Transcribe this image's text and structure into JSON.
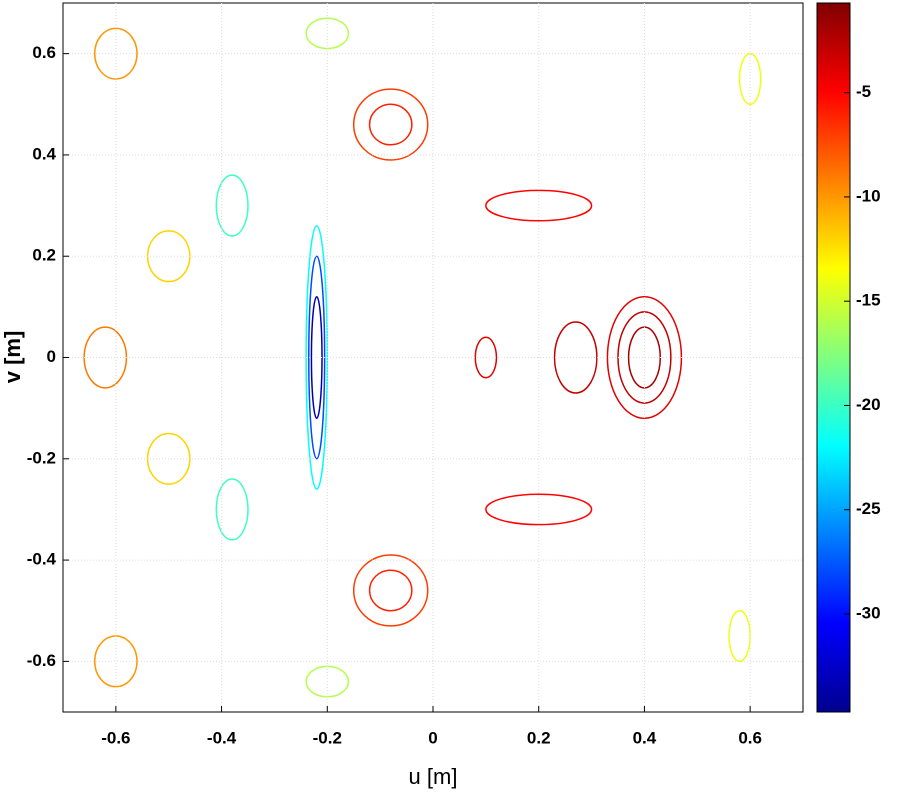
{
  "chart_data": {
    "type": "contour",
    "xlabel": "u [m]",
    "ylabel": "v [m]",
    "xlim": [
      -0.7,
      0.7
    ],
    "ylim": [
      -0.7,
      0.7
    ],
    "xticks": [
      -0.6,
      -0.4,
      -0.2,
      0,
      0.2,
      0.4,
      0.6
    ],
    "yticks": [
      -0.6,
      -0.4,
      -0.2,
      0,
      0.2,
      0.4,
      0.6
    ],
    "grid": true,
    "colormap": "jet",
    "clim": [
      -34.7,
      -0.7
    ],
    "cticks": [
      -30,
      -25,
      -20,
      -15,
      -10,
      -5
    ],
    "contours": [
      {
        "level": -22,
        "cx": -0.22,
        "cy": 0,
        "rx": 0.02,
        "ry": 0.26
      },
      {
        "level": -28,
        "cx": -0.22,
        "cy": 0,
        "rx": 0.015,
        "ry": 0.2
      },
      {
        "level": -33,
        "cx": -0.22,
        "cy": 0,
        "rx": 0.01,
        "ry": 0.12
      },
      {
        "level": -4,
        "cx": 0.4,
        "cy": 0,
        "rx": 0.07,
        "ry": 0.12
      },
      {
        "level": -3,
        "cx": 0.4,
        "cy": 0,
        "rx": 0.05,
        "ry": 0.09
      },
      {
        "level": -2,
        "cx": 0.4,
        "cy": 0,
        "rx": 0.03,
        "ry": 0.06
      },
      {
        "level": -3,
        "cx": 0.27,
        "cy": 0,
        "rx": 0.04,
        "ry": 0.07
      },
      {
        "level": -4,
        "cx": 0.1,
        "cy": 0,
        "rx": 0.02,
        "ry": 0.04
      },
      {
        "level": -7,
        "cx": -0.08,
        "cy": 0.46,
        "rx": 0.07,
        "ry": 0.07
      },
      {
        "level": -6,
        "cx": -0.08,
        "cy": 0.46,
        "rx": 0.04,
        "ry": 0.04
      },
      {
        "level": -7,
        "cx": -0.08,
        "cy": -0.46,
        "rx": 0.07,
        "ry": 0.07
      },
      {
        "level": -6,
        "cx": -0.08,
        "cy": -0.46,
        "rx": 0.04,
        "ry": 0.04
      },
      {
        "level": -14,
        "cx": 0.6,
        "cy": 0.55,
        "rx": 0.02,
        "ry": 0.05
      },
      {
        "level": -14,
        "cx": 0.58,
        "cy": -0.55,
        "rx": 0.02,
        "ry": 0.05
      },
      {
        "level": -20,
        "cx": -0.38,
        "cy": 0.3,
        "rx": 0.03,
        "ry": 0.06
      },
      {
        "level": -20,
        "cx": -0.38,
        "cy": -0.3,
        "rx": 0.03,
        "ry": 0.06
      },
      {
        "level": -16,
        "cx": -0.2,
        "cy": 0.64,
        "rx": 0.04,
        "ry": 0.03
      },
      {
        "level": -16,
        "cx": -0.2,
        "cy": -0.64,
        "rx": 0.04,
        "ry": 0.03
      },
      {
        "level": -9,
        "cx": -0.62,
        "cy": 0,
        "rx": 0.04,
        "ry": 0.06
      },
      {
        "level": -12,
        "cx": -0.5,
        "cy": 0.2,
        "rx": 0.04,
        "ry": 0.05
      },
      {
        "level": -12,
        "cx": -0.5,
        "cy": -0.2,
        "rx": 0.04,
        "ry": 0.05
      },
      {
        "level": -10,
        "cx": -0.6,
        "cy": 0.6,
        "rx": 0.04,
        "ry": 0.05
      },
      {
        "level": -10,
        "cx": -0.6,
        "cy": -0.6,
        "rx": 0.04,
        "ry": 0.05
      },
      {
        "level": -5,
        "cx": 0.2,
        "cy": 0.3,
        "rx": 0.1,
        "ry": 0.03
      },
      {
        "level": -5,
        "cx": 0.2,
        "cy": -0.3,
        "rx": 0.1,
        "ry": 0.03
      }
    ]
  }
}
